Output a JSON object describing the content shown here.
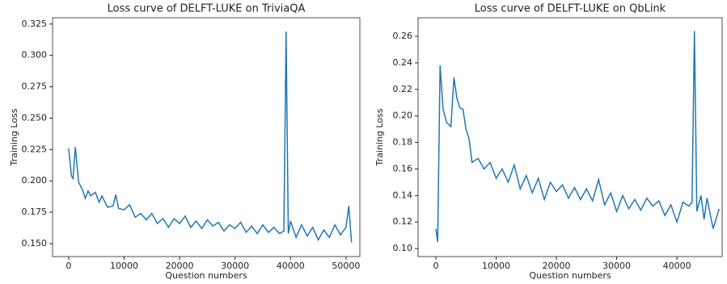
{
  "chart_data": [
    {
      "type": "line",
      "title": "Loss curve of DELFT-LUKE on TriviaQA",
      "x_label": "Question numbers",
      "y_label": "Training Loss",
      "x": [
        0,
        500,
        800,
        1200,
        1800,
        2500,
        3000,
        3500,
        4000,
        4800,
        5500,
        6000,
        7000,
        8000,
        8500,
        9000,
        10000,
        11000,
        12000,
        13000,
        14000,
        15000,
        16000,
        17000,
        18000,
        19000,
        20000,
        21000,
        22000,
        23000,
        24000,
        25000,
        26000,
        27000,
        28000,
        29000,
        30000,
        31000,
        32000,
        33000,
        34000,
        35000,
        36000,
        37000,
        38000,
        38800,
        39200,
        39600,
        40000,
        41000,
        42000,
        43000,
        44000,
        45000,
        46000,
        47000,
        48000,
        49000,
        50000,
        50500,
        51000
      ],
      "series": [
        {
          "name": "loss",
          "color": "#1f77b4",
          "values": [
            0.226,
            0.204,
            0.202,
            0.227,
            0.199,
            0.193,
            0.186,
            0.192,
            0.188,
            0.191,
            0.183,
            0.188,
            0.179,
            0.18,
            0.189,
            0.178,
            0.177,
            0.181,
            0.171,
            0.174,
            0.169,
            0.174,
            0.166,
            0.17,
            0.163,
            0.17,
            0.166,
            0.172,
            0.163,
            0.168,
            0.162,
            0.169,
            0.164,
            0.167,
            0.16,
            0.165,
            0.162,
            0.167,
            0.159,
            0.164,
            0.158,
            0.165,
            0.159,
            0.163,
            0.158,
            0.16,
            0.319,
            0.158,
            0.168,
            0.155,
            0.165,
            0.156,
            0.163,
            0.153,
            0.161,
            0.155,
            0.165,
            0.157,
            0.163,
            0.18,
            0.151
          ]
        }
      ],
      "xlim": [
        -2900,
        52500
      ],
      "ylim": [
        0.1397,
        0.33
      ],
      "xticks": [
        0,
        10000,
        20000,
        30000,
        40000,
        50000
      ],
      "yticks": [
        {
          "value": 0.15,
          "label": "0.150"
        },
        0.175,
        {
          "value": 0.2,
          "label": "0.200"
        },
        0.225,
        {
          "value": 0.25,
          "label": "0.250"
        },
        0.275,
        {
          "value": 0.3,
          "label": "0.300"
        },
        0.325
      ]
    },
    {
      "type": "line",
      "title": "Loss curve of DELFT-LUKE on QbLink",
      "x_label": "Question numbers",
      "y_label": "Training Loss",
      "x": [
        0,
        300,
        700,
        1200,
        1800,
        2500,
        3000,
        3500,
        4000,
        4500,
        5000,
        5500,
        6000,
        7000,
        8000,
        9000,
        10000,
        11000,
        12000,
        13000,
        14000,
        15000,
        16000,
        17000,
        18000,
        19000,
        20000,
        21000,
        22000,
        23000,
        24000,
        25000,
        26000,
        27000,
        28000,
        29000,
        30000,
        31000,
        32000,
        33000,
        34000,
        35000,
        36000,
        37000,
        38000,
        39000,
        40000,
        41000,
        42000,
        42500,
        42900,
        43300,
        44000,
        44500,
        45000,
        46000,
        47000
      ],
      "series": [
        {
          "name": "loss",
          "color": "#1f77b4",
          "values": [
            0.115,
            0.105,
            0.238,
            0.205,
            0.195,
            0.192,
            0.229,
            0.213,
            0.206,
            0.205,
            0.19,
            0.183,
            0.165,
            0.168,
            0.16,
            0.165,
            0.153,
            0.16,
            0.15,
            0.163,
            0.145,
            0.155,
            0.142,
            0.153,
            0.137,
            0.15,
            0.143,
            0.148,
            0.138,
            0.146,
            0.137,
            0.145,
            0.136,
            0.152,
            0.133,
            0.142,
            0.128,
            0.14,
            0.13,
            0.137,
            0.129,
            0.138,
            0.132,
            0.136,
            0.125,
            0.133,
            0.12,
            0.135,
            0.132,
            0.135,
            0.264,
            0.128,
            0.14,
            0.122,
            0.138,
            0.115,
            0.13
          ]
        }
      ],
      "xlim": [
        -2950,
        47500
      ],
      "ylim": [
        0.094,
        0.274
      ],
      "xticks": [
        0,
        10000,
        20000,
        30000,
        40000
      ],
      "yticks": [
        {
          "value": 0.1,
          "label": "0.10"
        },
        {
          "value": 0.12,
          "label": "0.12"
        },
        {
          "value": 0.14,
          "label": "0.14"
        },
        {
          "value": 0.16,
          "label": "0.16"
        },
        {
          "value": 0.18,
          "label": "0.18"
        },
        {
          "value": 0.2,
          "label": "0.20"
        },
        {
          "value": 0.22,
          "label": "0.22"
        },
        {
          "value": 0.24,
          "label": "0.24"
        },
        {
          "value": 0.26,
          "label": "0.26"
        }
      ]
    }
  ]
}
